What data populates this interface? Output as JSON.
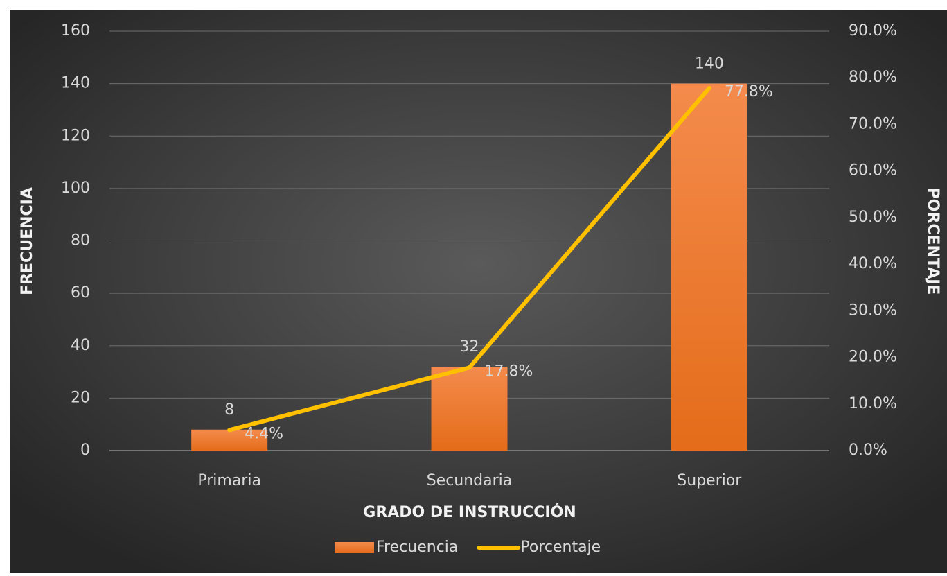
{
  "chart_data": {
    "type": "combo",
    "x_label": "GRADO DE INSTRUCCIÓN",
    "y_label": "FRECUENCIA",
    "y2_label": "PORCENTAJE",
    "categories": [
      "Primaria",
      "Secundaria",
      "Superior"
    ],
    "series": [
      {
        "name": "Frecuencia",
        "type": "bar",
        "color": "#ed7d31",
        "values": [
          8,
          32,
          140
        ]
      },
      {
        "name": "Porcentaje",
        "type": "line",
        "axis": "y2",
        "color": "#ffc000",
        "values": [
          4.4,
          17.8,
          77.8
        ],
        "value_labels": [
          "4.4%",
          "17.8%",
          "77.8%"
        ]
      }
    ],
    "ylim": [
      0,
      160
    ],
    "yticks": [
      0,
      20,
      40,
      60,
      80,
      100,
      120,
      140,
      160
    ],
    "y2lim": [
      0,
      90
    ],
    "y2ticks": [
      {
        "value": 0,
        "label": "0.0%"
      },
      {
        "value": 10,
        "label": "10.0%"
      },
      {
        "value": 20,
        "label": "20.0%"
      },
      {
        "value": 30,
        "label": "30.0%"
      },
      {
        "value": 40,
        "label": "40.0%"
      },
      {
        "value": 50,
        "label": "50.0%"
      },
      {
        "value": 60,
        "label": "60.0%"
      },
      {
        "value": 70,
        "label": "70.0%"
      },
      {
        "value": 80,
        "label": "80.0%"
      },
      {
        "value": 90,
        "label": "90.0%"
      }
    ],
    "grid": true,
    "legend": "bottom"
  }
}
